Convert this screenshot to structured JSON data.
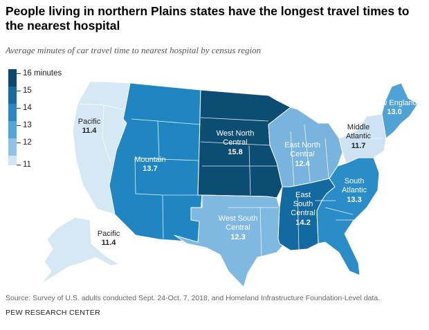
{
  "title": "People living in northern Plains states have the longest travel times to the nearest hospital",
  "subtitle": "Average minutes of car travel time to nearest hospital by census region",
  "legend": {
    "labels": [
      "16 minutes",
      "15",
      "14",
      "13",
      "12",
      "11"
    ],
    "colors": [
      "#0b4a6e",
      "#1869a0",
      "#2a87c0",
      "#52a6d6",
      "#8ec3e6",
      "#cfe4f4"
    ]
  },
  "regions": [
    {
      "name": "Pacific",
      "value": "11.4",
      "color": "#d7e8f5"
    },
    {
      "name": "Mountain",
      "value": "13.7",
      "color": "#1f86c2"
    },
    {
      "name": "West North Central",
      "name_lines": [
        "West North",
        "Central"
      ],
      "value": "15.8",
      "color": "#0d4d73"
    },
    {
      "name": "West South Central",
      "name_lines": [
        "West South",
        "Central"
      ],
      "value": "12.3",
      "color": "#7fb8e0"
    },
    {
      "name": "East North Central",
      "name_lines": [
        "East North",
        "Central"
      ],
      "value": "12.4",
      "color": "#78b4dd"
    },
    {
      "name": "East South Central",
      "name_lines": [
        "East",
        "South",
        "Central"
      ],
      "value": "14.2",
      "color": "#136aa1"
    },
    {
      "name": "South Atlantic",
      "name_lines": [
        "South",
        "Atlantic"
      ],
      "value": "13.3",
      "color": "#2b8dc8"
    },
    {
      "name": "Middle Atlantic",
      "name_lines": [
        "Middle",
        "Atlantic"
      ],
      "value": "11.7",
      "color": "#cde2f3"
    },
    {
      "name": "New England",
      "value": "13.0",
      "color": "#4fa2d6"
    },
    {
      "name": "Pacific",
      "value": "11.4",
      "color": "#d7e8f5"
    }
  ],
  "source": "Source: Survey of U.S. adults conducted Sept. 24-Oct. 7, 2018, and Homeland Infrastructure Foundation-Level data.",
  "org": "PEW RESEARCH CENTER"
}
